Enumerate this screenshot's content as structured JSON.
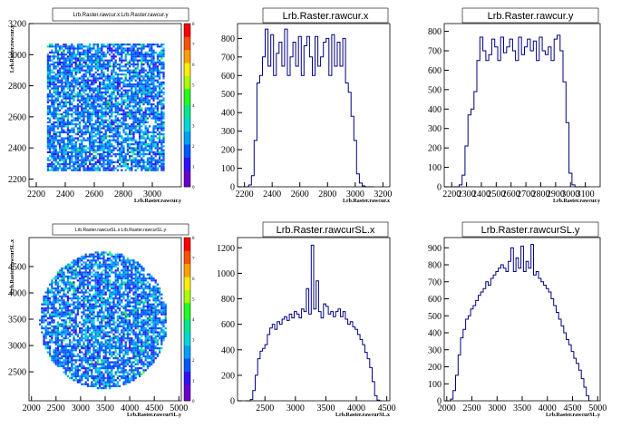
{
  "chart_data": [
    {
      "type": "heatmap",
      "title": "Lrb.Raster.rawcur.x:Lrb.Raster.rawcur.y",
      "xlabel": "Lrb.Raster.rawcur.y",
      "ylabel": "Lrb.Raster.rawcur.x",
      "xlim": [
        2150,
        3200
      ],
      "ylim": [
        2150,
        3200
      ],
      "xticks": [
        "2200",
        "2400",
        "2600",
        "2800",
        "3000"
      ],
      "yticks": [
        "3200",
        "3000",
        "2800",
        "2600",
        "2400",
        "2200"
      ],
      "shape": "square",
      "region": {
        "x": [
          2270,
          3080
        ],
        "y": [
          2260,
          3080
        ]
      },
      "palette_ticks": [
        "0",
        "1",
        "2",
        "3",
        "4",
        "5",
        "6",
        "7",
        "8"
      ],
      "zlim": [
        0,
        8
      ]
    },
    {
      "type": "line",
      "title": "Lrb.Raster.rawcur.x",
      "xlabel": "Lrb.Raster.rawcur.x",
      "xlim": [
        2150,
        3250
      ],
      "ylim": [
        0,
        880
      ],
      "xticks": [
        "2200",
        "2400",
        "2600",
        "2800",
        "3000",
        "3200"
      ],
      "yticks": [
        "0",
        "100",
        "200",
        "300",
        "400",
        "500",
        "600",
        "700",
        "800"
      ],
      "bin_width": 20,
      "x": [
        2200,
        2220,
        2240,
        2260,
        2280,
        2300,
        2320,
        2340,
        2360,
        2380,
        2400,
        2420,
        2440,
        2460,
        2480,
        2500,
        2520,
        2540,
        2560,
        2580,
        2600,
        2620,
        2640,
        2660,
        2680,
        2700,
        2720,
        2740,
        2760,
        2780,
        2800,
        2820,
        2840,
        2860,
        2880,
        2900,
        2920,
        2940,
        2960,
        2980,
        3000,
        3020,
        3040,
        3060,
        3080,
        3100,
        3120
      ],
      "values": [
        0,
        0,
        10,
        60,
        250,
        560,
        600,
        700,
        850,
        650,
        820,
        600,
        720,
        780,
        650,
        850,
        600,
        700,
        780,
        650,
        810,
        600,
        760,
        810,
        700,
        600,
        810,
        650,
        700,
        780,
        800,
        600,
        820,
        650,
        780,
        650,
        800,
        560,
        510,
        380,
        250,
        70,
        20,
        5,
        0,
        0,
        0
      ]
    },
    {
      "type": "line",
      "title": "Lrb.Raster.rawcur.y",
      "xlabel": "Lrb.Raster.rawcur.y",
      "xlim": [
        2150,
        3200
      ],
      "ylim": [
        0,
        840
      ],
      "xticks": [
        "2200",
        "2300",
        "2400",
        "2500",
        "2600",
        "2700",
        "2800",
        "2900",
        "3000",
        "3100"
      ],
      "yticks": [
        "0",
        "100",
        "200",
        "300",
        "400",
        "500",
        "600",
        "700",
        "800"
      ],
      "bin_width": 20,
      "x": [
        2200,
        2220,
        2240,
        2260,
        2280,
        2300,
        2320,
        2340,
        2360,
        2380,
        2400,
        2420,
        2440,
        2460,
        2480,
        2500,
        2520,
        2540,
        2560,
        2580,
        2600,
        2620,
        2640,
        2660,
        2680,
        2700,
        2720,
        2740,
        2760,
        2780,
        2800,
        2820,
        2840,
        2860,
        2880,
        2900,
        2920,
        2940,
        2960,
        2980,
        3000,
        3020,
        3040,
        3060,
        3080,
        3100
      ],
      "values": [
        0,
        0,
        0,
        10,
        60,
        210,
        370,
        400,
        490,
        650,
        770,
        700,
        650,
        680,
        760,
        720,
        650,
        770,
        690,
        720,
        760,
        700,
        650,
        770,
        680,
        720,
        760,
        700,
        750,
        650,
        770,
        700,
        680,
        720,
        650,
        760,
        780,
        700,
        540,
        330,
        70,
        10,
        0,
        0,
        0,
        0
      ]
    },
    {
      "type": "heatmap",
      "title": "Lrb.Raster.rawcurSL.x:Lrb.Raster.rawcurSL.y",
      "xlabel": "Lrb.Raster.rawcurSL.y",
      "ylabel": "Lrb.Raster.rawcurSL.x",
      "xlim": [
        1950,
        5050
      ],
      "ylim": [
        1950,
        5050
      ],
      "xticks": [
        "2000",
        "2500",
        "3000",
        "3500",
        "4000",
        "4500",
        "5000"
      ],
      "yticks": [
        "4500",
        "4000",
        "3500",
        "3000",
        "2500"
      ],
      "shape": "circle",
      "region": {
        "cx": 3450,
        "cy": 3500,
        "r": 1300
      },
      "palette_ticks": [
        "0",
        "1",
        "2",
        "3",
        "4",
        "5",
        "6",
        "7",
        "8"
      ],
      "zlim": [
        0,
        8
      ]
    },
    {
      "type": "line",
      "title": "Lrb.Raster.rawcurSL.x",
      "xlabel": "Lrb.Raster.rawcurSL.x",
      "xlim": [
        2050,
        4550
      ],
      "ylim": [
        0,
        1280
      ],
      "xticks": [
        "2500",
        "3000",
        "3500",
        "4000",
        "4500"
      ],
      "yticks": [
        "0",
        "200",
        "400",
        "600",
        "800",
        "1000",
        "1200"
      ],
      "bin_width": 40,
      "x": [
        2200,
        2240,
        2280,
        2320,
        2360,
        2400,
        2440,
        2480,
        2520,
        2560,
        2600,
        2640,
        2680,
        2720,
        2760,
        2800,
        2840,
        2880,
        2920,
        2960,
        3000,
        3040,
        3080,
        3120,
        3160,
        3200,
        3240,
        3280,
        3320,
        3360,
        3400,
        3440,
        3480,
        3520,
        3560,
        3600,
        3640,
        3680,
        3720,
        3760,
        3800,
        3840,
        3880,
        3920,
        3960,
        4000,
        4040,
        4080,
        4120,
        4160,
        4200,
        4240,
        4280,
        4320,
        4360,
        4400
      ],
      "values": [
        0,
        0,
        10,
        80,
        200,
        330,
        390,
        410,
        440,
        520,
        570,
        600,
        560,
        620,
        600,
        640,
        660,
        630,
        680,
        650,
        700,
        680,
        650,
        720,
        700,
        880,
        680,
        1220,
        720,
        940,
        700,
        650,
        760,
        740,
        680,
        700,
        660,
        700,
        720,
        660,
        700,
        640,
        600,
        620,
        580,
        560,
        520,
        480,
        440,
        380,
        330,
        260,
        150,
        40,
        5,
        0
      ]
    },
    {
      "type": "line",
      "title": "Lrb.Raster.rawcurSL.y",
      "xlabel": "Lrb.Raster.rawcurSL.y",
      "xlim": [
        1950,
        5050
      ],
      "ylim": [
        0,
        960
      ],
      "xticks": [
        "2000",
        "2500",
        "3000",
        "3500",
        "4000",
        "4500",
        "5000"
      ],
      "yticks": [
        "0",
        "100",
        "200",
        "300",
        "400",
        "500",
        "600",
        "700",
        "800",
        "900"
      ],
      "bin_width": 50,
      "x": [
        2050,
        2100,
        2150,
        2200,
        2250,
        2300,
        2350,
        2400,
        2450,
        2500,
        2550,
        2600,
        2650,
        2700,
        2750,
        2800,
        2850,
        2900,
        2950,
        3000,
        3050,
        3100,
        3150,
        3200,
        3250,
        3300,
        3350,
        3400,
        3450,
        3500,
        3550,
        3600,
        3650,
        3700,
        3750,
        3800,
        3850,
        3900,
        3950,
        4000,
        4050,
        4100,
        4150,
        4200,
        4250,
        4300,
        4350,
        4400,
        4450,
        4500,
        4550,
        4600,
        4650,
        4700,
        4750,
        4800,
        4850
      ],
      "values": [
        0,
        10,
        60,
        150,
        270,
        370,
        420,
        480,
        500,
        540,
        560,
        590,
        620,
        640,
        660,
        700,
        680,
        720,
        740,
        760,
        780,
        800,
        780,
        760,
        820,
        900,
        760,
        840,
        780,
        910,
        760,
        820,
        780,
        920,
        740,
        760,
        720,
        700,
        680,
        660,
        640,
        600,
        560,
        520,
        480,
        440,
        400,
        360,
        330,
        290,
        250,
        220,
        180,
        130,
        80,
        30,
        0
      ]
    }
  ]
}
